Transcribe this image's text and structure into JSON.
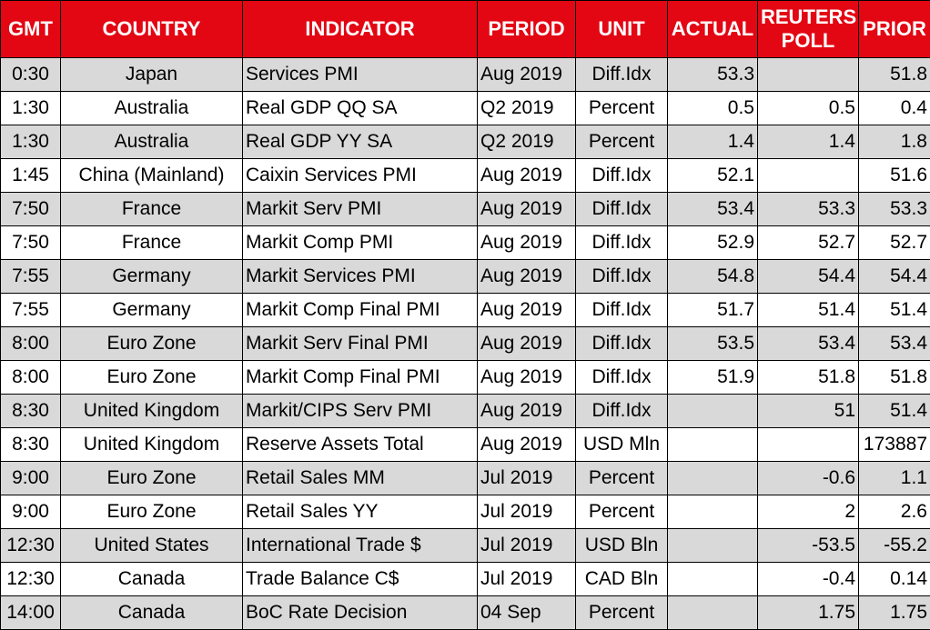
{
  "columns": [
    {
      "key": "gmt",
      "label": "GMT"
    },
    {
      "key": "country",
      "label": "COUNTRY"
    },
    {
      "key": "indicator",
      "label": "INDICATOR"
    },
    {
      "key": "period",
      "label": "PERIOD"
    },
    {
      "key": "unit",
      "label": "UNIT"
    },
    {
      "key": "actual",
      "label": "ACTUAL"
    },
    {
      "key": "poll",
      "label": "REUTERS POLL"
    },
    {
      "key": "prior",
      "label": "PRIOR"
    }
  ],
  "rows": [
    {
      "gmt": "0:30",
      "country": "Japan",
      "indicator": "Services PMI",
      "period": "Aug 2019",
      "unit": "Diff.Idx",
      "actual": "53.3",
      "poll": "",
      "prior": "51.8"
    },
    {
      "gmt": "1:30",
      "country": "Australia",
      "indicator": "Real GDP QQ SA",
      "period": "Q2 2019",
      "unit": "Percent",
      "actual": "0.5",
      "poll": "0.5",
      "prior": "0.4"
    },
    {
      "gmt": "1:30",
      "country": "Australia",
      "indicator": "Real GDP YY SA",
      "period": "Q2 2019",
      "unit": "Percent",
      "actual": "1.4",
      "poll": "1.4",
      "prior": "1.8"
    },
    {
      "gmt": "1:45",
      "country": "China (Mainland)",
      "indicator": "Caixin Services PMI",
      "period": "Aug 2019",
      "unit": "Diff.Idx",
      "actual": "52.1",
      "poll": "",
      "prior": "51.6"
    },
    {
      "gmt": "7:50",
      "country": "France",
      "indicator": "Markit Serv PMI",
      "period": "Aug 2019",
      "unit": "Diff.Idx",
      "actual": "53.4",
      "poll": "53.3",
      "prior": "53.3"
    },
    {
      "gmt": "7:50",
      "country": "France",
      "indicator": "Markit Comp PMI",
      "period": "Aug 2019",
      "unit": "Diff.Idx",
      "actual": "52.9",
      "poll": "52.7",
      "prior": "52.7"
    },
    {
      "gmt": "7:55",
      "country": "Germany",
      "indicator": "Markit Services PMI",
      "period": "Aug 2019",
      "unit": "Diff.Idx",
      "actual": "54.8",
      "poll": "54.4",
      "prior": "54.4"
    },
    {
      "gmt": "7:55",
      "country": "Germany",
      "indicator": "Markit Comp Final PMI",
      "period": "Aug 2019",
      "unit": "Diff.Idx",
      "actual": "51.7",
      "poll": "51.4",
      "prior": "51.4"
    },
    {
      "gmt": "8:00",
      "country": "Euro Zone",
      "indicator": "Markit Serv Final PMI",
      "period": "Aug 2019",
      "unit": "Diff.Idx",
      "actual": "53.5",
      "poll": "53.4",
      "prior": "53.4"
    },
    {
      "gmt": "8:00",
      "country": "Euro Zone",
      "indicator": "Markit Comp Final PMI",
      "period": "Aug 2019",
      "unit": "Diff.Idx",
      "actual": "51.9",
      "poll": "51.8",
      "prior": "51.8"
    },
    {
      "gmt": "8:30",
      "country": "United Kingdom",
      "indicator": "Markit/CIPS Serv PMI",
      "period": "Aug 2019",
      "unit": "Diff.Idx",
      "actual": "",
      "poll": "51",
      "prior": "51.4"
    },
    {
      "gmt": "8:30",
      "country": "United Kingdom",
      "indicator": "Reserve Assets Total",
      "period": "Aug 2019",
      "unit": "USD Mln",
      "actual": "",
      "poll": "",
      "prior": "173887"
    },
    {
      "gmt": "9:00",
      "country": "Euro Zone",
      "indicator": "Retail Sales MM",
      "period": "Jul 2019",
      "unit": "Percent",
      "actual": "",
      "poll": "-0.6",
      "prior": "1.1"
    },
    {
      "gmt": "9:00",
      "country": "Euro Zone",
      "indicator": "Retail Sales YY",
      "period": "Jul 2019",
      "unit": "Percent",
      "actual": "",
      "poll": "2",
      "prior": "2.6"
    },
    {
      "gmt": "12:30",
      "country": "United States",
      "indicator": "International Trade $",
      "period": "Jul 2019",
      "unit": "USD Bln",
      "actual": "",
      "poll": "-53.5",
      "prior": "-55.2"
    },
    {
      "gmt": "12:30",
      "country": "Canada",
      "indicator": "Trade Balance C$",
      "period": "Jul 2019",
      "unit": "CAD Bln",
      "actual": "",
      "poll": "-0.4",
      "prior": "0.14"
    },
    {
      "gmt": "14:00",
      "country": "Canada",
      "indicator": "BoC Rate Decision",
      "period": "04 Sep",
      "unit": "Percent",
      "actual": "",
      "poll": "1.75",
      "prior": "1.75"
    }
  ]
}
